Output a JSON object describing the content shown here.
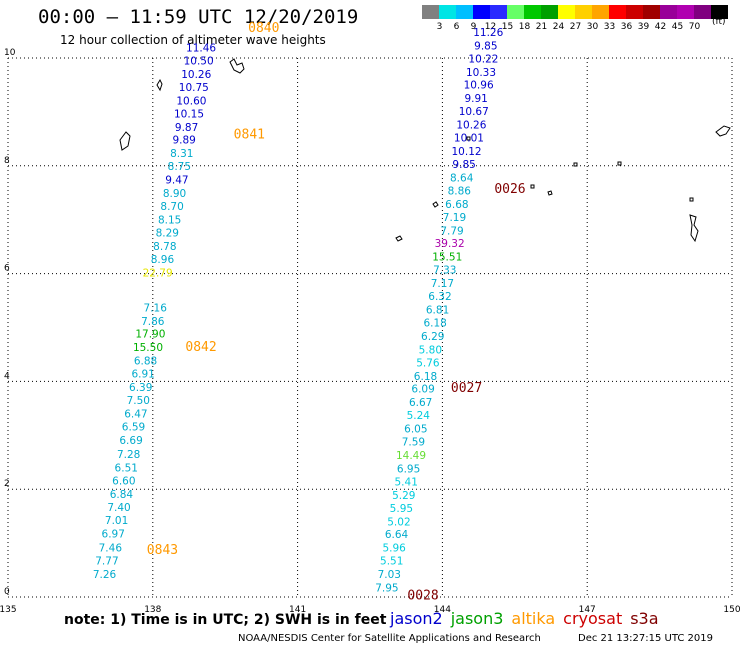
{
  "header": {
    "title": "00:00 – 11:59 UTC 12/20/2019",
    "subtitle": "12 hour collection of altimeter wave heights"
  },
  "colorbar": {
    "colors": [
      "#808080",
      "#00e5e5",
      "#00bfff",
      "#0000ff",
      "#2a2aff",
      "#66ff66",
      "#00c800",
      "#00a000",
      "#ffff00",
      "#ffd000",
      "#ffa500",
      "#ff0000",
      "#cc0000",
      "#a00000",
      "#990099",
      "#b000b0",
      "#800080",
      "#000000"
    ],
    "labels": [
      "3",
      "6",
      "9",
      "12",
      "15",
      "18",
      "21",
      "24",
      "27",
      "30",
      "33",
      "36",
      "39",
      "42",
      "45",
      "70"
    ],
    "unit": "(ft)"
  },
  "axes": {
    "x_ticks": [
      "135",
      "138",
      "141",
      "144",
      "147",
      "150"
    ],
    "y_ticks": [
      "0",
      "2",
      "4",
      "6",
      "8",
      "10"
    ]
  },
  "chart_data": {
    "type": "scatter",
    "xlim": [
      135,
      150
    ],
    "ylim": [
      0,
      10
    ],
    "grid": true,
    "track_A": [
      {
        "x": 137.0,
        "y": 0.35,
        "v": "7.26",
        "c": "#00aacc"
      },
      {
        "x": 137.05,
        "y": 0.6,
        "v": "7.77",
        "c": "#00aacc"
      },
      {
        "x": 137.12,
        "y": 0.84,
        "v": "7.46",
        "c": "#00aacc"
      },
      {
        "x": 137.18,
        "y": 1.1,
        "v": "6.97",
        "c": "#00aacc"
      },
      {
        "x": 137.25,
        "y": 1.35,
        "v": "7.01",
        "c": "#00aacc"
      },
      {
        "x": 137.3,
        "y": 1.6,
        "v": "7.40",
        "c": "#00aacc"
      },
      {
        "x": 137.35,
        "y": 1.84,
        "v": "6.84",
        "c": "#00aacc"
      },
      {
        "x": 137.4,
        "y": 2.09,
        "v": "6.60",
        "c": "#00aacc"
      },
      {
        "x": 137.45,
        "y": 2.33,
        "v": "6.51",
        "c": "#00aacc"
      },
      {
        "x": 137.5,
        "y": 2.58,
        "v": "7.28",
        "c": "#00aacc"
      },
      {
        "x": 137.55,
        "y": 2.84,
        "v": "6.69",
        "c": "#00aacc"
      },
      {
        "x": 137.6,
        "y": 3.09,
        "v": "6.59",
        "c": "#00aacc"
      },
      {
        "x": 137.65,
        "y": 3.33,
        "v": "6.47",
        "c": "#00aacc"
      },
      {
        "x": 137.7,
        "y": 3.58,
        "v": "7.50",
        "c": "#00aacc"
      },
      {
        "x": 137.75,
        "y": 3.82,
        "v": "6.39",
        "c": "#00aacc"
      },
      {
        "x": 137.8,
        "y": 4.07,
        "v": "6.91",
        "c": "#00aacc"
      },
      {
        "x": 137.85,
        "y": 4.31,
        "v": "6.88",
        "c": "#00aacc"
      },
      {
        "x": 137.9,
        "y": 4.56,
        "v": "15.50",
        "c": "#00b000"
      },
      {
        "x": 137.95,
        "y": 4.81,
        "v": "17.90",
        "c": "#00b000"
      },
      {
        "x": 138.0,
        "y": 5.05,
        "v": "7.86",
        "c": "#00aacc"
      },
      {
        "x": 138.05,
        "y": 5.3,
        "v": "7.16",
        "c": "#00aacc"
      },
      {
        "x": 138.1,
        "y": 5.95,
        "v": "22.79",
        "c": "#e6e600"
      },
      {
        "x": 138.2,
        "y": 6.2,
        "v": "8.96",
        "c": "#00aacc"
      },
      {
        "x": 138.25,
        "y": 6.44,
        "v": "8.78",
        "c": "#00aacc"
      },
      {
        "x": 138.3,
        "y": 6.69,
        "v": "8.29",
        "c": "#00aacc"
      },
      {
        "x": 138.35,
        "y": 6.93,
        "v": "8.15",
        "c": "#00aacc"
      },
      {
        "x": 138.4,
        "y": 7.18,
        "v": "8.70",
        "c": "#00aacc"
      },
      {
        "x": 138.45,
        "y": 7.42,
        "v": "8.90",
        "c": "#00aacc"
      },
      {
        "x": 138.5,
        "y": 7.67,
        "v": "9.47",
        "c": "#0000cc"
      },
      {
        "x": 138.55,
        "y": 7.92,
        "v": "8.75",
        "c": "#00aacc"
      },
      {
        "x": 138.6,
        "y": 8.16,
        "v": "8.31",
        "c": "#00aacc"
      },
      {
        "x": 138.65,
        "y": 8.41,
        "v": "9.89",
        "c": "#0000cc"
      },
      {
        "x": 138.7,
        "y": 8.65,
        "v": "9.87",
        "c": "#0000cc"
      },
      {
        "x": 138.75,
        "y": 8.9,
        "v": "10.15",
        "c": "#0000cc"
      },
      {
        "x": 138.8,
        "y": 9.14,
        "v": "10.60",
        "c": "#0000cc"
      },
      {
        "x": 138.85,
        "y": 9.39,
        "v": "10.75",
        "c": "#0000cc"
      },
      {
        "x": 138.9,
        "y": 9.63,
        "v": "10.26",
        "c": "#0000cc"
      },
      {
        "x": 138.95,
        "y": 9.88,
        "v": "10.50",
        "c": "#0000cc"
      },
      {
        "x": 139.0,
        "y": 10.12,
        "v": "11.46",
        "c": "#0000cc"
      }
    ],
    "track_B": [
      {
        "x": 142.85,
        "y": 0.1,
        "v": "7.95",
        "c": "#00aacc"
      },
      {
        "x": 142.9,
        "y": 0.35,
        "v": "7.03",
        "c": "#00aacc"
      },
      {
        "x": 142.95,
        "y": 0.6,
        "v": "5.51",
        "c": "#00ccdd"
      },
      {
        "x": 143.0,
        "y": 0.84,
        "v": "5.96",
        "c": "#00ccdd"
      },
      {
        "x": 143.05,
        "y": 1.09,
        "v": "6.64",
        "c": "#00aacc"
      },
      {
        "x": 143.1,
        "y": 1.33,
        "v": "5.02",
        "c": "#00ccdd"
      },
      {
        "x": 143.15,
        "y": 1.58,
        "v": "5.95",
        "c": "#00ccdd"
      },
      {
        "x": 143.2,
        "y": 1.82,
        "v": "5.29",
        "c": "#00ccdd"
      },
      {
        "x": 143.25,
        "y": 2.07,
        "v": "5.41",
        "c": "#00ccdd"
      },
      {
        "x": 143.3,
        "y": 2.31,
        "v": "6.95",
        "c": "#00aacc"
      },
      {
        "x": 143.35,
        "y": 2.56,
        "v": "14.49",
        "c": "#66dd33"
      },
      {
        "x": 143.4,
        "y": 2.81,
        "v": "7.59",
        "c": "#00aacc"
      },
      {
        "x": 143.45,
        "y": 3.05,
        "v": "6.05",
        "c": "#00aacc"
      },
      {
        "x": 143.5,
        "y": 3.3,
        "v": "5.24",
        "c": "#00ccdd"
      },
      {
        "x": 143.55,
        "y": 3.54,
        "v": "6.67",
        "c": "#00aacc"
      },
      {
        "x": 143.6,
        "y": 3.79,
        "v": "6.09",
        "c": "#00aacc"
      },
      {
        "x": 143.65,
        "y": 4.03,
        "v": "6.18",
        "c": "#00aacc"
      },
      {
        "x": 143.7,
        "y": 4.28,
        "v": "5.76",
        "c": "#00ccdd"
      },
      {
        "x": 143.75,
        "y": 4.52,
        "v": "5.80",
        "c": "#00ccdd"
      },
      {
        "x": 143.8,
        "y": 4.77,
        "v": "6.29",
        "c": "#00aacc"
      },
      {
        "x": 143.85,
        "y": 5.02,
        "v": "6.18",
        "c": "#00aacc"
      },
      {
        "x": 143.9,
        "y": 5.26,
        "v": "6.81",
        "c": "#00aacc"
      },
      {
        "x": 143.95,
        "y": 5.51,
        "v": "6.32",
        "c": "#00aacc"
      },
      {
        "x": 144.0,
        "y": 5.75,
        "v": "7.17",
        "c": "#00aacc"
      },
      {
        "x": 144.05,
        "y": 6.0,
        "v": "7.33",
        "c": "#00aacc"
      },
      {
        "x": 144.1,
        "y": 6.24,
        "v": "15.51",
        "c": "#00b000"
      },
      {
        "x": 144.15,
        "y": 6.49,
        "v": "39.32",
        "c": "#aa00aa"
      },
      {
        "x": 144.2,
        "y": 6.73,
        "v": "7.79",
        "c": "#00aacc"
      },
      {
        "x": 144.25,
        "y": 6.98,
        "v": "7.19",
        "c": "#00aacc"
      },
      {
        "x": 144.3,
        "y": 7.22,
        "v": "6.68",
        "c": "#00aacc"
      },
      {
        "x": 144.35,
        "y": 7.47,
        "v": "8.86",
        "c": "#00aacc"
      },
      {
        "x": 144.4,
        "y": 7.71,
        "v": "8.64",
        "c": "#00aacc"
      },
      {
        "x": 144.45,
        "y": 7.96,
        "v": "9.85",
        "c": "#0000cc"
      },
      {
        "x": 144.5,
        "y": 8.2,
        "v": "10.12",
        "c": "#0000cc"
      },
      {
        "x": 144.55,
        "y": 8.45,
        "v": "10.01",
        "c": "#0000cc"
      },
      {
        "x": 144.6,
        "y": 8.69,
        "v": "10.26",
        "c": "#0000cc"
      },
      {
        "x": 144.65,
        "y": 8.94,
        "v": "10.67",
        "c": "#0000cc"
      },
      {
        "x": 144.7,
        "y": 9.18,
        "v": "9.91",
        "c": "#0000cc"
      },
      {
        "x": 144.75,
        "y": 9.43,
        "v": "10.96",
        "c": "#0000cc"
      },
      {
        "x": 144.8,
        "y": 9.67,
        "v": "10.33",
        "c": "#0000cc"
      },
      {
        "x": 144.85,
        "y": 9.92,
        "v": "10.22",
        "c": "#0000cc"
      },
      {
        "x": 144.9,
        "y": 10.16,
        "v": "9.85",
        "c": "#0000cc"
      },
      {
        "x": 144.95,
        "y": 10.41,
        "v": "11.26",
        "c": "#0000cc"
      }
    ],
    "time_labels": [
      {
        "x": 140.3,
        "y": 10.48,
        "t": "0840",
        "c": "#ff9900"
      },
      {
        "x": 140.0,
        "y": 8.51,
        "t": "0841",
        "c": "#ff9900"
      },
      {
        "x": 139.0,
        "y": 4.56,
        "t": "0842",
        "c": "#ff9900"
      },
      {
        "x": 138.2,
        "y": 0.8,
        "t": "0843",
        "c": "#ff9900"
      },
      {
        "x": 145.4,
        "y": 7.5,
        "t": "0026",
        "c": "#800000"
      },
      {
        "x": 144.5,
        "y": 3.8,
        "t": "0027",
        "c": "#800000"
      },
      {
        "x": 143.6,
        "y": -0.05,
        "t": "0028",
        "c": "#800000"
      }
    ]
  },
  "footer": {
    "note": "note: 1) Time is in UTC; 2) SWH is in feet",
    "legend": [
      {
        "name": "jason2",
        "color": "#0000cc"
      },
      {
        "name": "jason3",
        "color": "#00a000"
      },
      {
        "name": "altika",
        "color": "#ff9900"
      },
      {
        "name": "cryosat",
        "color": "#cc0000"
      },
      {
        "name": "s3a",
        "color": "#800000"
      }
    ],
    "credit": "NOAA/NESDIS Center for Satellite Applications and Research",
    "timestamp": "Dec 21 13:27:15 UTC 2019"
  }
}
